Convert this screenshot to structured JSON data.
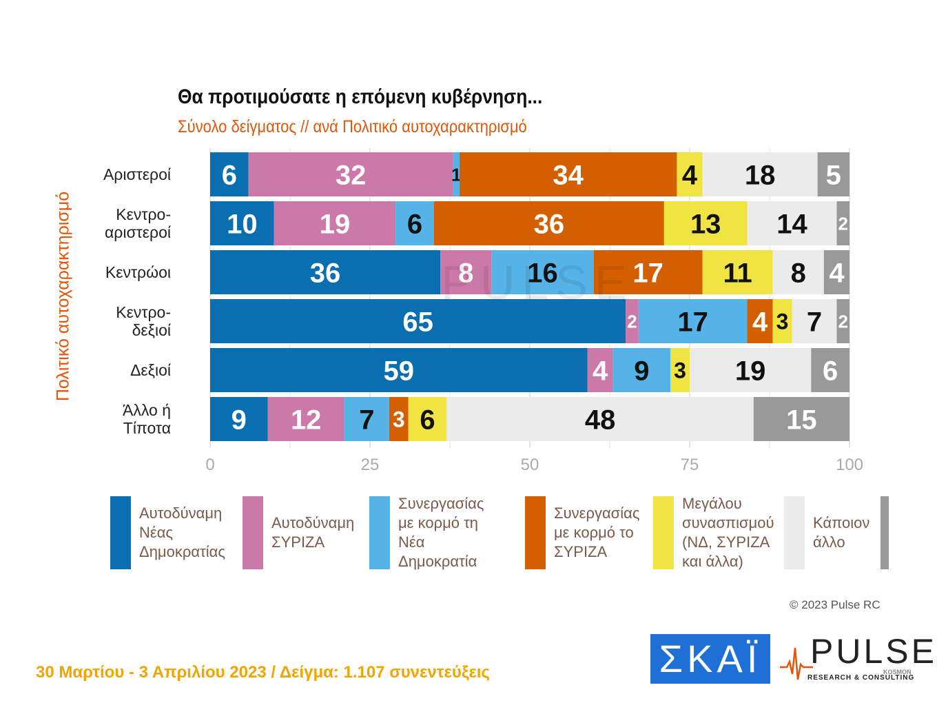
{
  "title": "Θα προτιμούσατε η επόμενη κυβέρνηση...",
  "subtitle": "Σύνολο δείγματος // ανά Πολιτικό αυτοχαρακτηρισμό",
  "y_axis_title": "Πολιτικό αυτοχαρακτηρισμό",
  "chart_data": {
    "type": "bar",
    "orientation": "horizontal",
    "stacked": true,
    "categories": [
      "Αριστεροί",
      "Κεντρο-\nαριστεροί",
      "Κεντρώοι",
      "Κεντρο-\nδεξιοί",
      "Δεξιοί",
      "Άλλο ή\nΤίποτα"
    ],
    "series": [
      {
        "name": "Αυτοδύναμη\nΝέας\nΔημοκρατίας",
        "color": "#0a6fb0",
        "label_color": "#ffffff",
        "values": [
          6,
          10,
          36,
          65,
          59,
          9
        ]
      },
      {
        "name": "Αυτοδύναμη\nΣΥΡΙΖΑ",
        "color": "#cc78a8",
        "label_color": "#ffffff",
        "values": [
          32,
          19,
          8,
          2,
          4,
          12
        ]
      },
      {
        "name": "Συνεργασίας\nμε κορμό τη\nΝέα Δημοκρατία",
        "color": "#56b3e8",
        "label_color": "#111111",
        "values": [
          1,
          6,
          16,
          17,
          9,
          7
        ]
      },
      {
        "name": "Συνεργασίας\nμε κορμό το\nΣΥΡΙΖΑ",
        "color": "#d45f00",
        "label_color": "#ffffff",
        "values": [
          34,
          36,
          17,
          4,
          0,
          3
        ]
      },
      {
        "name": "Μεγάλου\nσυνασπισμού\n(ΝΔ, ΣΥΡΙΖΑ\nκαι άλλα)",
        "color": "#f0e442",
        "label_color": "#111111",
        "values": [
          4,
          13,
          11,
          3,
          3,
          6
        ]
      },
      {
        "name": "Κάποιον\nάλλο",
        "color": "#ebebeb",
        "label_color": "#111111",
        "values": [
          18,
          14,
          8,
          7,
          19,
          48
        ]
      },
      {
        "name": "",
        "color": "#999999",
        "label_color": "#ffffff",
        "values": [
          5,
          2,
          4,
          2,
          6,
          15
        ]
      }
    ],
    "xlim": [
      0,
      100
    ],
    "x_ticks": [
      "0",
      "25",
      "50",
      "75",
      "100"
    ],
    "grid": true,
    "legend_position": "bottom"
  },
  "copyright": "© 2023 Pulse RC",
  "footer": "30 Μαρτίου - 3  Απριλίου  2023  /  Δείγμα:  1.107 συνεντεύξεις",
  "logos": {
    "skai": "ΣΚΑΪ",
    "pulse": "PULSE",
    "pulse_tagline": "RESEARCH & CONSULTING",
    "pulse_sub": "KOSMON"
  }
}
